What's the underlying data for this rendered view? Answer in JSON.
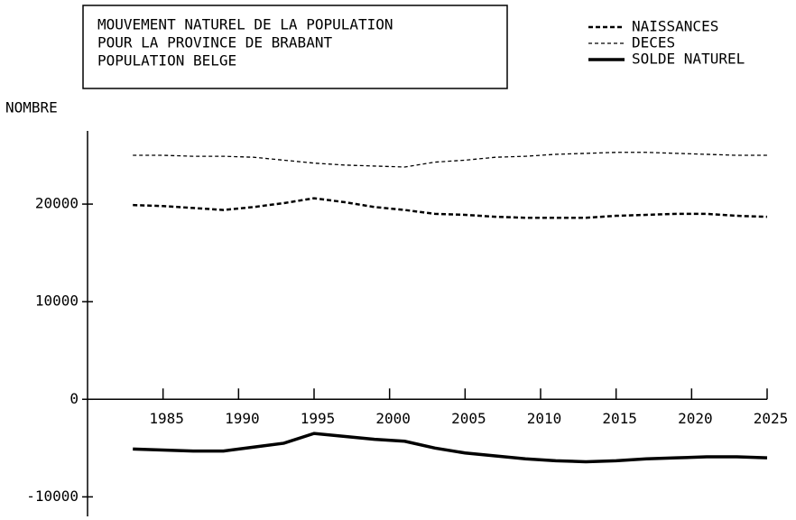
{
  "chart_data": {
    "type": "line",
    "title": [
      "MOUVEMENT NATUREL DE LA POPULATION",
      "POUR LA PROVINCE DE BRABANT",
      "POPULATION BELGE"
    ],
    "y_label": "NOMBRE",
    "x": [
      1983,
      1985,
      1987,
      1989,
      1991,
      1993,
      1995,
      1997,
      1999,
      2001,
      2003,
      2005,
      2007,
      2009,
      2011,
      2013,
      2015,
      2017,
      2019,
      2021,
      2023,
      2025
    ],
    "series": [
      {
        "name": "NAISSANCES",
        "color": "#000000",
        "line_style": "dashed",
        "values": [
          19900,
          19800,
          19600,
          19400,
          19700,
          20100,
          20600,
          20200,
          19700,
          19400,
          19000,
          18900,
          18700,
          18600,
          18600,
          18600,
          18800,
          18900,
          19000,
          19000,
          18800,
          18700
        ]
      },
      {
        "name": "DECES",
        "color": "#000000",
        "line_style": "dotted",
        "values": [
          25000,
          25000,
          24900,
          24900,
          24800,
          24500,
          24200,
          24000,
          23900,
          23800,
          24300,
          24500,
          24800,
          24900,
          25100,
          25200,
          25300,
          25300,
          25200,
          25100,
          25000,
          25000
        ]
      },
      {
        "name": "SOLDE NATUREL",
        "color": "#000000",
        "line_style": "solid",
        "values": [
          -5100,
          -5200,
          -5300,
          -5300,
          -4900,
          -4500,
          -3500,
          -3800,
          -4100,
          -4300,
          -5000,
          -5500,
          -5800,
          -6100,
          -6300,
          -6400,
          -6300,
          -6100,
          -6000,
          -5900,
          -5900,
          -6000
        ]
      }
    ],
    "xlim": [
      1980,
      2025
    ],
    "xticks": [
      1985,
      1990,
      1995,
      2000,
      2005,
      2010,
      2015,
      2020,
      2025
    ],
    "ylim": [
      -12000,
      27500
    ],
    "yticks": [
      -10000,
      0,
      10000,
      20000
    ]
  }
}
